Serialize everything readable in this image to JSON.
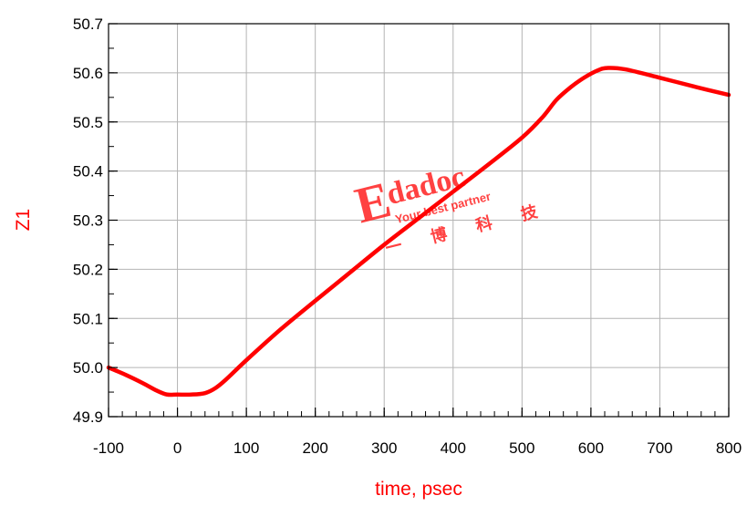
{
  "colors": {
    "series": "#ff0000",
    "axis_title": "#ff0000",
    "grid": "#b4b4b4",
    "frame": "#000000",
    "watermark": "#ff2020"
  },
  "watermark": {
    "brand": "Edadoc",
    "tagline": "Your best partner",
    "cn_text": "一 博 科 技"
  },
  "chart_data": {
    "type": "line",
    "xlabel": "time, psec",
    "ylabel": "Z1",
    "xlim": [
      -100,
      800
    ],
    "ylim": [
      49.9,
      50.7
    ],
    "x_ticks": [
      -100,
      0,
      100,
      200,
      300,
      400,
      500,
      600,
      700,
      800
    ],
    "x_tick_labels": [
      "-100",
      "0",
      "100",
      "200",
      "300",
      "400",
      "500",
      "600",
      "700",
      "800"
    ],
    "y_ticks": [
      49.9,
      50.0,
      50.1,
      50.2,
      50.3,
      50.4,
      50.5,
      50.6,
      50.7
    ],
    "y_tick_labels": [
      "49.9",
      "50.0",
      "50.1",
      "50.2",
      "50.3",
      "50.4",
      "50.5",
      "50.6",
      "50.7"
    ],
    "grid": true,
    "legend": "none",
    "series": [
      {
        "x": [
          -100,
          -75,
          -50,
          -30,
          -15,
          0,
          20,
          40,
          55,
          70,
          100,
          150,
          200,
          250,
          300,
          350,
          400,
          450,
          500,
          530,
          550,
          570,
          590,
          610,
          625,
          650,
          700,
          750,
          800
        ],
        "y": [
          50.0,
          49.985,
          49.968,
          49.953,
          49.945,
          49.945,
          49.945,
          49.948,
          49.958,
          49.975,
          50.015,
          50.078,
          50.136,
          50.193,
          50.25,
          50.304,
          50.358,
          50.412,
          50.468,
          50.51,
          50.545,
          50.57,
          50.59,
          50.605,
          50.61,
          50.607,
          50.59,
          50.572,
          50.555
        ]
      }
    ]
  }
}
